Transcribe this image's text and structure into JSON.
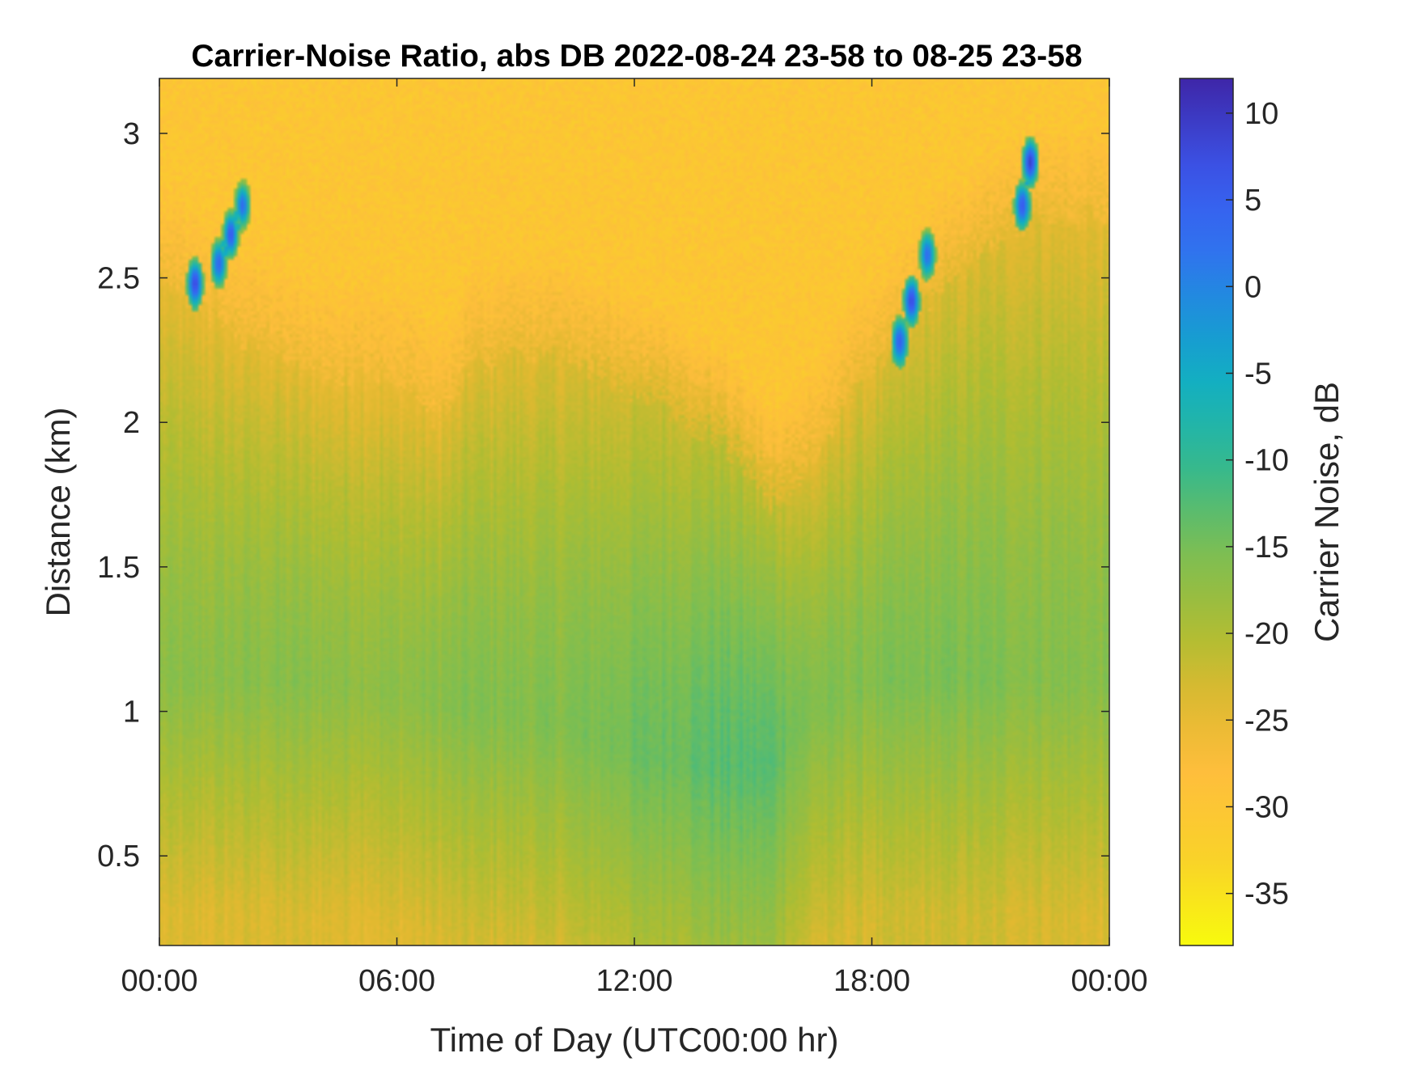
{
  "chart_data": {
    "type": "heatmap",
    "title": "Carrier-Noise Ratio, abs DB 2022-08-24 23-58 to 08-25 23-58",
    "xlabel": "Time of Day (UTC00:00 hr)",
    "ylabel": "Distance (km)",
    "xlim": [
      0,
      24
    ],
    "ylim": [
      0.19,
      3.19
    ],
    "x_ticks": [
      0,
      6,
      12,
      18,
      24
    ],
    "x_tick_labels": [
      "00:00",
      "06:00",
      "12:00",
      "18:00",
      "00:00"
    ],
    "y_ticks": [
      0.5,
      1,
      1.5,
      2,
      2.5,
      3
    ],
    "y_tick_labels": [
      "0.5",
      "1",
      "1.5",
      "2",
      "2.5",
      "3"
    ],
    "colorbar": {
      "label": "Carrier Noise, dB",
      "clim": [
        -38,
        12
      ],
      "ticks": [
        10,
        5,
        0,
        -5,
        -10,
        -15,
        -20,
        -25,
        -30,
        -35
      ],
      "tick_labels": [
        "10",
        "5",
        "0",
        "-5",
        "-10",
        "-15",
        "-20",
        "-25",
        "-30",
        "-35"
      ],
      "colormap": "parula"
    },
    "boundary_layer_top_km": {
      "time_hr": [
        0,
        2,
        4,
        6,
        7,
        8,
        10,
        12,
        14,
        15.5,
        16.5,
        17.5,
        18.5,
        20,
        22,
        24
      ],
      "height_km": [
        2.5,
        2.3,
        2.15,
        2.15,
        2.0,
        2.2,
        2.25,
        2.1,
        1.95,
        1.7,
        1.85,
        2.1,
        2.25,
        2.5,
        2.7,
        2.7
      ]
    },
    "core_profile": {
      "time_hr": [
        0,
        3,
        6,
        8,
        10,
        12,
        14,
        15.5,
        16.5,
        18,
        20,
        22,
        24
      ],
      "core_height_km": [
        1.1,
        1.1,
        1.05,
        1.0,
        0.95,
        0.85,
        0.8,
        0.8,
        1.0,
        1.1,
        1.1,
        1.1,
        1.1
      ],
      "core_value_db": [
        -17,
        -16.5,
        -17,
        -16,
        -16,
        -14.5,
        -13,
        -13,
        -16,
        -16,
        -15.5,
        -16,
        -16.5
      ]
    },
    "strong_return_patches": [
      {
        "time_hr": 0.9,
        "height_km": 2.48,
        "value_db": 8
      },
      {
        "time_hr": 1.5,
        "height_km": 2.55,
        "value_db": 4
      },
      {
        "time_hr": 1.8,
        "height_km": 2.65,
        "value_db": 6
      },
      {
        "time_hr": 2.1,
        "height_km": 2.75,
        "value_db": 3
      },
      {
        "time_hr": 18.7,
        "height_km": 2.28,
        "value_db": 5
      },
      {
        "time_hr": 19.0,
        "height_km": 2.42,
        "value_db": 8
      },
      {
        "time_hr": 19.4,
        "height_km": 2.58,
        "value_db": 3
      },
      {
        "time_hr": 21.8,
        "height_km": 2.75,
        "value_db": 6
      },
      {
        "time_hr": 22.0,
        "height_km": 2.9,
        "value_db": 9
      }
    ],
    "background_value_db": -30,
    "grid": false
  }
}
